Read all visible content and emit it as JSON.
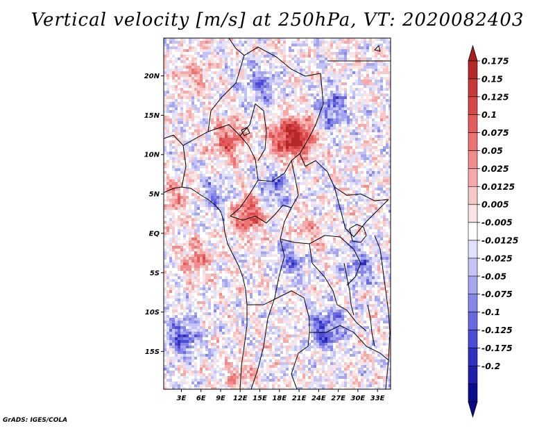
{
  "chart_data": {
    "type": "heatmap",
    "title": "Vertical velocity [m/s] at 250hPa, VT: 2020082403",
    "field": "Vertical velocity",
    "units": "m/s",
    "level": "250hPa",
    "valid_time": "2020082403",
    "x_ticks": [
      {
        "value": 3,
        "label": "3E"
      },
      {
        "value": 6,
        "label": "6E"
      },
      {
        "value": 9,
        "label": "9E"
      },
      {
        "value": 12,
        "label": "12E"
      },
      {
        "value": 15,
        "label": "15E"
      },
      {
        "value": 18,
        "label": "18E"
      },
      {
        "value": 21,
        "label": "21E"
      },
      {
        "value": 24,
        "label": "24E"
      },
      {
        "value": 27,
        "label": "27E"
      },
      {
        "value": 30,
        "label": "30E"
      },
      {
        "value": 33,
        "label": "33E"
      }
    ],
    "y_ticks": [
      {
        "value": 20,
        "label": "20N"
      },
      {
        "value": 15,
        "label": "15N"
      },
      {
        "value": 10,
        "label": "10N"
      },
      {
        "value": 5,
        "label": "5N"
      },
      {
        "value": 0,
        "label": "EQ"
      },
      {
        "value": -5,
        "label": "5S"
      },
      {
        "value": -10,
        "label": "10S"
      },
      {
        "value": -15,
        "label": "15S"
      }
    ],
    "xlim": [
      0.3,
      35
    ],
    "ylim": [
      -19.8,
      24.8
    ],
    "colorbar": {
      "labels": [
        "0.175",
        "0.15",
        "0.125",
        "0.1",
        "0.075",
        "0.05",
        "0.025",
        "0.0125",
        "0.005",
        "-0.005",
        "-0.0125",
        "-0.025",
        "-0.05",
        "-0.075",
        "-0.1",
        "-0.125",
        "-0.175",
        "-0.2"
      ],
      "colors": [
        "#b42828",
        "#c83838",
        "#d84848",
        "#e35b5b",
        "#ea7373",
        "#f08c8c",
        "#f5a9a9",
        "#f8c8c8",
        "#fbe4e4",
        "#ffffff",
        "#e1e1fb",
        "#c3c3f5",
        "#a5a5ef",
        "#8787e9",
        "#6969df",
        "#4b4bd3",
        "#3030c0",
        "#1e1ea8",
        "#0b0b90"
      ],
      "top_arrow_color": "#aa2020",
      "bottom_arrow_color": "#0b0b90"
    },
    "field_features": [
      {
        "lon": 10,
        "lat": 12,
        "sign": 1,
        "strength": 0.9
      },
      {
        "lon": 18.5,
        "lat": 12,
        "sign": 1,
        "strength": 0.9
      },
      {
        "lon": 21,
        "lat": 12.5,
        "sign": 1,
        "strength": 1.0
      },
      {
        "lon": 13,
        "lat": 2.5,
        "sign": 1,
        "strength": 1.0
      },
      {
        "lon": 2,
        "lat": 5,
        "sign": 1,
        "strength": 0.5
      },
      {
        "lon": 5,
        "lat": -3,
        "sign": 1,
        "strength": 0.6
      },
      {
        "lon": 22,
        "lat": 0,
        "sign": 1,
        "strength": 0.5
      },
      {
        "lon": 12,
        "lat": -18,
        "sign": 1,
        "strength": 0.4
      },
      {
        "lon": 5,
        "lat": 20,
        "sign": 1,
        "strength": 0.4
      },
      {
        "lon": 17,
        "lat": 6,
        "sign": -1,
        "strength": 0.6
      },
      {
        "lon": 26,
        "lat": 16,
        "sign": -1,
        "strength": 0.7
      },
      {
        "lon": 3,
        "lat": -13,
        "sign": -1,
        "strength": 0.8
      },
      {
        "lon": 25,
        "lat": -12,
        "sign": -1,
        "strength": 0.9
      },
      {
        "lon": 20,
        "lat": -3,
        "sign": -1,
        "strength": 0.6
      },
      {
        "lon": 15,
        "lat": 19,
        "sign": -1,
        "strength": 0.6
      },
      {
        "lon": 30,
        "lat": -4,
        "sign": -1,
        "strength": 0.6
      },
      {
        "lon": 8,
        "lat": 5,
        "sign": -1,
        "strength": 0.5
      }
    ]
  },
  "footer": "GrADS: IGES/COLA"
}
